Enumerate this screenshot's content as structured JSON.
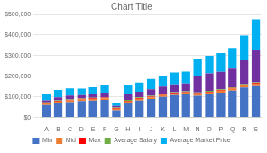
{
  "chart_data": {
    "type": "bar",
    "title": "Chart Title",
    "categories": [
      "A",
      "B",
      "C",
      "D",
      "E",
      "F",
      "G",
      "H",
      "I",
      "J",
      "K",
      "L",
      "M",
      "N",
      "O",
      "P",
      "Q",
      "R",
      "S"
    ],
    "series": [
      {
        "name": "Min",
        "color": "#4472C4",
        "values": [
          60000,
          70000,
          75000,
          80000,
          82000,
          85000,
          35000,
          70000,
          82000,
          90000,
          100000,
          108000,
          112000,
          105000,
          112000,
          120000,
          130000,
          145000,
          152000
        ]
      },
      {
        "name": "Mid",
        "color": "#ED7D31",
        "values": [
          8000,
          8000,
          8000,
          8000,
          8000,
          8000,
          8000,
          8000,
          8000,
          8000,
          8000,
          8000,
          8000,
          10000,
          10000,
          10000,
          10000,
          10000,
          12000
        ]
      },
      {
        "name": "Max",
        "color": "#FF0000",
        "values": [
          3000,
          3000,
          3000,
          3000,
          3000,
          3000,
          3000,
          3000,
          3000,
          3000,
          3000,
          3000,
          3000,
          3000,
          3000,
          3000,
          3000,
          3000,
          3000
        ]
      },
      {
        "name": "Average Salary",
        "color": "#70AD47",
        "values": [
          2000,
          2000,
          2000,
          2000,
          2000,
          2000,
          2000,
          4000,
          4000,
          4000,
          4000,
          4000,
          4000,
          4000,
          4000,
          4000,
          4000,
          4000,
          4000
        ]
      },
      {
        "color": "#7030A0",
        "values": [
          10000,
          15000,
          18000,
          15000,
          17000,
          22000,
          8000,
          28000,
          28000,
          32000,
          35000,
          38000,
          38000,
          80000,
          85000,
          85000,
          90000,
          115000,
          155000
        ]
      },
      {
        "name": "Average Market Price",
        "color": "#00B0F0",
        "values": [
          30000,
          35000,
          35000,
          32000,
          35000,
          38000,
          15000,
          45000,
          45000,
          50000,
          52000,
          58000,
          58000,
          80000,
          85000,
          90000,
          100000,
          120000,
          150000
        ]
      }
    ],
    "stacked": true,
    "ylim": [
      0,
      500000
    ],
    "yticks": [
      {
        "value": 0,
        "label": "$0"
      },
      {
        "value": 100000,
        "label": "$100,000"
      },
      {
        "value": 200000,
        "label": "$200,000"
      },
      {
        "value": 300000,
        "label": "$300,000"
      },
      {
        "value": 400000,
        "label": "$400,000"
      },
      {
        "value": 500000,
        "label": "$500,000"
      }
    ],
    "grid": true,
    "legend": "bottom"
  }
}
